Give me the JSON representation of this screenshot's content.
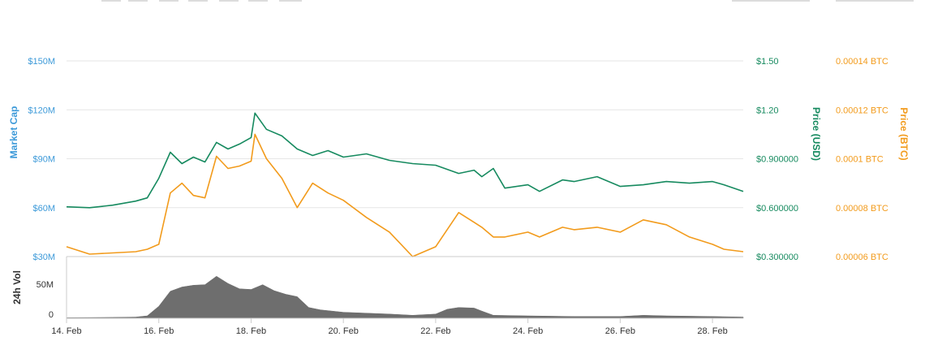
{
  "colors": {
    "market_cap": "#3d9ad9",
    "price_usd": "#168a5f",
    "price_btc": "#f29b1c",
    "volume": "#6e6e6e",
    "grid": "#e6e6e6",
    "axis_text": "#555555"
  },
  "chart_data": {
    "type": "line",
    "x_dates": [
      "14. Feb",
      "16. Feb",
      "18. Feb",
      "20. Feb",
      "22. Feb",
      "24. Feb",
      "26. Feb",
      "28. Feb"
    ],
    "x_range": [
      "2018-02-14",
      "2018-02-28T16:00"
    ],
    "left_axis": {
      "title": "Market Cap",
      "ticks": [
        "$150M",
        "$120M",
        "$90M",
        "$60M",
        "$30M"
      ],
      "values": [
        150,
        120,
        90,
        60,
        30
      ],
      "unit": "$M"
    },
    "right_usd_axis": {
      "title": "Price (USD)",
      "ticks": [
        "$1.50",
        "$1.20",
        "$0.900000",
        "$0.600000",
        "$0.300000"
      ],
      "values": [
        1.5,
        1.2,
        0.9,
        0.6,
        0.3
      ]
    },
    "right_btc_axis": {
      "title": "Price (BTC)",
      "ticks": [
        "0.00014 BTC",
        "0.00012 BTC",
        "0.0001 BTC",
        "0.00008 BTC",
        "0.00006 BTC"
      ],
      "values": [
        0.00014,
        0.00012,
        0.0001,
        8e-05,
        6e-05
      ]
    },
    "volume_axis": {
      "title": "24h Vol",
      "ticks": [
        "50M",
        "0"
      ],
      "values": [
        50,
        0
      ]
    },
    "series": [
      {
        "name": "Price (USD)",
        "axis": "usd",
        "points": [
          [
            "2018-02-14",
            0.605
          ],
          [
            "2018-02-14T12:00",
            0.6
          ],
          [
            "2018-02-15",
            0.615
          ],
          [
            "2018-02-15T12:00",
            0.64
          ],
          [
            "2018-02-15T18:00",
            0.66
          ],
          [
            "2018-02-16",
            0.78
          ],
          [
            "2018-02-16T06:00",
            0.94
          ],
          [
            "2018-02-16T12:00",
            0.87
          ],
          [
            "2018-02-16T18:00",
            0.91
          ],
          [
            "2018-02-17",
            0.88
          ],
          [
            "2018-02-17T06:00",
            1.0
          ],
          [
            "2018-02-17T12:00",
            0.96
          ],
          [
            "2018-02-17T18:00",
            0.99
          ],
          [
            "2018-02-18",
            1.03
          ],
          [
            "2018-02-18T02:00",
            1.18
          ],
          [
            "2018-02-18T08:00",
            1.08
          ],
          [
            "2018-02-18T16:00",
            1.04
          ],
          [
            "2018-02-19",
            0.96
          ],
          [
            "2018-02-19T08:00",
            0.92
          ],
          [
            "2018-02-19T16:00",
            0.95
          ],
          [
            "2018-02-20",
            0.91
          ],
          [
            "2018-02-20T12:00",
            0.93
          ],
          [
            "2018-02-21",
            0.89
          ],
          [
            "2018-02-21T12:00",
            0.87
          ],
          [
            "2018-02-22",
            0.86
          ],
          [
            "2018-02-22T12:00",
            0.81
          ],
          [
            "2018-02-22T20:00",
            0.83
          ],
          [
            "2018-02-23",
            0.79
          ],
          [
            "2018-02-23T06:00",
            0.84
          ],
          [
            "2018-02-23T12:00",
            0.72
          ],
          [
            "2018-02-24",
            0.74
          ],
          [
            "2018-02-24T06:00",
            0.7
          ],
          [
            "2018-02-24T18:00",
            0.77
          ],
          [
            "2018-02-25",
            0.76
          ],
          [
            "2018-02-25T12:00",
            0.79
          ],
          [
            "2018-02-26",
            0.73
          ],
          [
            "2018-02-26T12:00",
            0.74
          ],
          [
            "2018-02-27",
            0.76
          ],
          [
            "2018-02-27T12:00",
            0.75
          ],
          [
            "2018-02-28",
            0.76
          ],
          [
            "2018-02-28T06:00",
            0.74
          ],
          [
            "2018-02-28T16:00",
            0.7
          ]
        ]
      },
      {
        "name": "Price (BTC)",
        "axis": "btc",
        "points": [
          [
            "2018-02-14",
            6.4e-05
          ],
          [
            "2018-02-14T12:00",
            6.1e-05
          ],
          [
            "2018-02-15",
            6.15e-05
          ],
          [
            "2018-02-15T12:00",
            6.2e-05
          ],
          [
            "2018-02-15T18:00",
            6.3e-05
          ],
          [
            "2018-02-16",
            6.5e-05
          ],
          [
            "2018-02-16T06:00",
            8.6e-05
          ],
          [
            "2018-02-16T12:00",
            9e-05
          ],
          [
            "2018-02-16T18:00",
            8.5e-05
          ],
          [
            "2018-02-17",
            8.4e-05
          ],
          [
            "2018-02-17T06:00",
            0.000101
          ],
          [
            "2018-02-17T12:00",
            9.6e-05
          ],
          [
            "2018-02-17T18:00",
            9.7e-05
          ],
          [
            "2018-02-18",
            9.9e-05
          ],
          [
            "2018-02-18T02:00",
            0.00011
          ],
          [
            "2018-02-18T08:00",
            0.0001
          ],
          [
            "2018-02-18T16:00",
            9.2e-05
          ],
          [
            "2018-02-19",
            8e-05
          ],
          [
            "2018-02-19T08:00",
            9e-05
          ],
          [
            "2018-02-19T16:00",
            8.6e-05
          ],
          [
            "2018-02-20",
            8.3e-05
          ],
          [
            "2018-02-20T12:00",
            7.6e-05
          ],
          [
            "2018-02-21",
            7e-05
          ],
          [
            "2018-02-21T12:00",
            6e-05
          ],
          [
            "2018-02-22",
            6.4e-05
          ],
          [
            "2018-02-22T12:00",
            7.8e-05
          ],
          [
            "2018-02-22T20:00",
            7.4e-05
          ],
          [
            "2018-02-23",
            7.2e-05
          ],
          [
            "2018-02-23T06:00",
            6.8e-05
          ],
          [
            "2018-02-23T12:00",
            6.8e-05
          ],
          [
            "2018-02-24",
            7e-05
          ],
          [
            "2018-02-24T06:00",
            6.8e-05
          ],
          [
            "2018-02-24T18:00",
            7.2e-05
          ],
          [
            "2018-02-25",
            7.1e-05
          ],
          [
            "2018-02-25T12:00",
            7.2e-05
          ],
          [
            "2018-02-26",
            7e-05
          ],
          [
            "2018-02-26T12:00",
            7.5e-05
          ],
          [
            "2018-02-27",
            7.3e-05
          ],
          [
            "2018-02-27T12:00",
            6.8e-05
          ],
          [
            "2018-02-28",
            6.5e-05
          ],
          [
            "2018-02-28T06:00",
            6.3e-05
          ],
          [
            "2018-02-28T16:00",
            6.2e-05
          ]
        ]
      },
      {
        "name": "24h Vol",
        "axis": "volume",
        "type": "area",
        "points": [
          [
            "2018-02-14",
            1
          ],
          [
            "2018-02-15",
            1.5
          ],
          [
            "2018-02-15T12:00",
            2
          ],
          [
            "2018-02-15T18:00",
            4
          ],
          [
            "2018-02-16",
            20
          ],
          [
            "2018-02-16T06:00",
            45
          ],
          [
            "2018-02-16T12:00",
            52
          ],
          [
            "2018-02-16T18:00",
            55
          ],
          [
            "2018-02-17",
            56
          ],
          [
            "2018-02-17T06:00",
            70
          ],
          [
            "2018-02-17T12:00",
            58
          ],
          [
            "2018-02-17T18:00",
            49
          ],
          [
            "2018-02-18",
            48
          ],
          [
            "2018-02-18T06:00",
            56
          ],
          [
            "2018-02-18T12:00",
            46
          ],
          [
            "2018-02-18T18:00",
            40
          ],
          [
            "2018-02-19",
            36
          ],
          [
            "2018-02-19T06:00",
            18
          ],
          [
            "2018-02-19T12:00",
            14
          ],
          [
            "2018-02-20",
            10
          ],
          [
            "2018-02-21",
            7
          ],
          [
            "2018-02-21T12:00",
            5
          ],
          [
            "2018-02-22",
            7
          ],
          [
            "2018-02-22T06:00",
            15
          ],
          [
            "2018-02-22T12:00",
            18
          ],
          [
            "2018-02-22T20:00",
            17
          ],
          [
            "2018-02-23",
            12
          ],
          [
            "2018-02-23T06:00",
            5
          ],
          [
            "2018-02-24",
            4
          ],
          [
            "2018-02-25",
            3
          ],
          [
            "2018-02-26",
            3
          ],
          [
            "2018-02-26T12:00",
            5
          ],
          [
            "2018-02-27",
            4
          ],
          [
            "2018-02-28",
            3
          ],
          [
            "2018-02-28T16:00",
            2
          ]
        ]
      }
    ],
    "grid": true
  }
}
